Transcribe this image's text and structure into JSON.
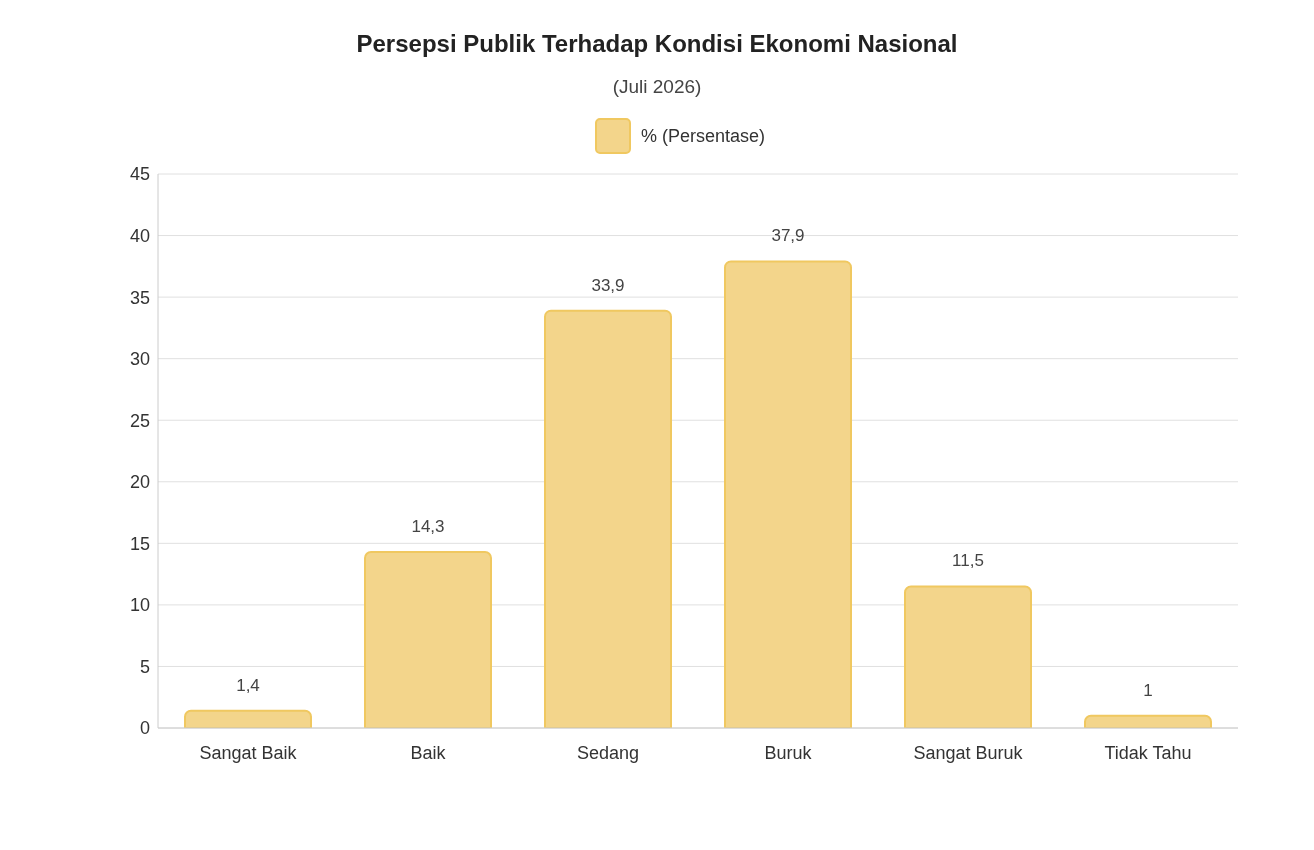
{
  "chart_data": {
    "type": "bar",
    "title": "Persepsi Publik Terhadap Kondisi Ekonomi Nasional",
    "subtitle": "(Juli 2026)",
    "categories": [
      "Sangat Baik",
      "Baik",
      "Sedang",
      "Buruk",
      "Sangat Buruk",
      "Tidak Tahu"
    ],
    "series": [
      {
        "name": "% (Persentase)",
        "color": "#f3d58b",
        "values": [
          1.4,
          14.3,
          33.9,
          37.9,
          11.5,
          1
        ]
      }
    ],
    "value_labels": [
      "1,4",
      "14,3",
      "33,9",
      "37,9",
      "11,5",
      "1"
    ],
    "ylim": [
      0,
      45
    ],
    "yticks": [
      0,
      5,
      10,
      15,
      20,
      25,
      30,
      35,
      40,
      45
    ],
    "grid": "y",
    "legend": "top"
  }
}
